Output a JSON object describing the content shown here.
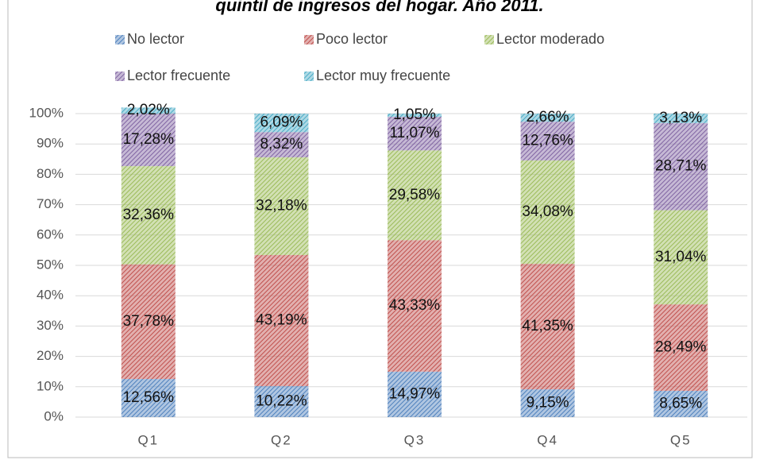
{
  "chart_data": {
    "type": "stacked_bar",
    "title": "quintil de ingresos del hogar. Año 2011.",
    "categories": [
      "Q1",
      "Q2",
      "Q3",
      "Q4",
      "Q5"
    ],
    "series": [
      {
        "name": "No lector",
        "color": "#4f81bd",
        "values": [
          12.56,
          10.22,
          14.97,
          9.15,
          8.65
        ],
        "value_labels": [
          "12,56%",
          "10,22%",
          "14,97%",
          "9,15%",
          "8,65%"
        ]
      },
      {
        "name": "Poco lector",
        "color": "#c0504d",
        "values": [
          37.78,
          43.19,
          43.33,
          41.35,
          28.49
        ],
        "value_labels": [
          "37,78%",
          "43,19%",
          "43,33%",
          "41,35%",
          "28,49%"
        ]
      },
      {
        "name": "Lector moderado",
        "color": "#9bbb59",
        "values": [
          32.36,
          32.18,
          29.58,
          34.08,
          31.04
        ],
        "value_labels": [
          "32,36%",
          "32,18%",
          "29,58%",
          "34,08%",
          "31,04%"
        ]
      },
      {
        "name": "Lector frecuente",
        "color": "#8064a2",
        "values": [
          17.28,
          8.32,
          11.07,
          12.76,
          28.71
        ],
        "value_labels": [
          "17,28%",
          "8,32%",
          "11,07%",
          "12,76%",
          "28,71%"
        ]
      },
      {
        "name": "Lector muy frecuente",
        "color": "#4bacc6",
        "values": [
          2.02,
          6.09,
          1.05,
          2.66,
          3.13
        ],
        "value_labels": [
          "2,02%",
          "6,09%",
          "1,05%",
          "2,66%",
          "3,13%"
        ]
      }
    ],
    "ylim": [
      0,
      100
    ],
    "yticks": [
      {
        "value": 0,
        "label": "0%"
      },
      {
        "value": 10,
        "label": "10%"
      },
      {
        "value": 20,
        "label": "20%"
      },
      {
        "value": 30,
        "label": "30%"
      },
      {
        "value": 40,
        "label": "40%"
      },
      {
        "value": 50,
        "label": "50%"
      },
      {
        "value": 60,
        "label": "60%"
      },
      {
        "value": 70,
        "label": "70%"
      },
      {
        "value": 80,
        "label": "80%"
      },
      {
        "value": 90,
        "label": "90%"
      },
      {
        "value": 100,
        "label": "100%"
      }
    ],
    "grid": true,
    "legend": "top"
  }
}
